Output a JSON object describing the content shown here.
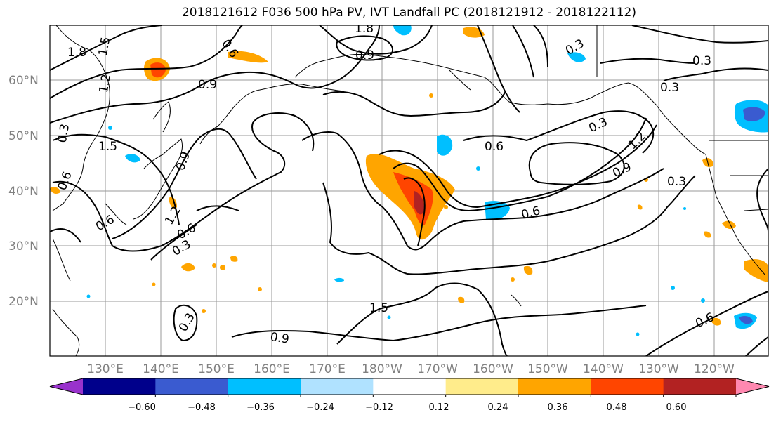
{
  "title": "2018121612 F036 500 hPa PV, IVT Landfall PC (2018121912 - 2018122112)",
  "map": {
    "lat_labels": [
      "60°N",
      "50°N",
      "40°N",
      "30°N",
      "20°N"
    ],
    "lon_labels": [
      "130°E",
      "140°E",
      "150°E",
      "160°E",
      "170°E",
      "180°W",
      "170°W",
      "160°W",
      "150°W",
      "140°W",
      "130°W",
      "120°W"
    ],
    "contour_labels": [
      "1.8",
      "1.5",
      "1.2",
      "0.9",
      "0.6",
      "0.3",
      "0.9",
      "1.5",
      "0.6",
      "0.6",
      "0.3",
      "0.6",
      "1.2",
      "1.8",
      "0.9",
      "0.6",
      "0.3",
      "0.3",
      "0.3",
      "0.3",
      "1.2",
      "0.9",
      "0.3",
      "0.6",
      "1.5",
      "0.9",
      "0.6",
      "0.3"
    ]
  },
  "colorbar": {
    "ticks": [
      "−0.60",
      "−0.48",
      "−0.36",
      "−0.24",
      "−0.12",
      "0.12",
      "0.24",
      "0.36",
      "0.48",
      "0.60"
    ],
    "colors": [
      "#9932cc",
      "#00008b",
      "#3a5bd0",
      "#00bfff",
      "#b0e2ff",
      "#ffffff",
      "#ffec8b",
      "#ffa500",
      "#ff4500",
      "#b22222",
      "#ff88b0"
    ]
  }
}
